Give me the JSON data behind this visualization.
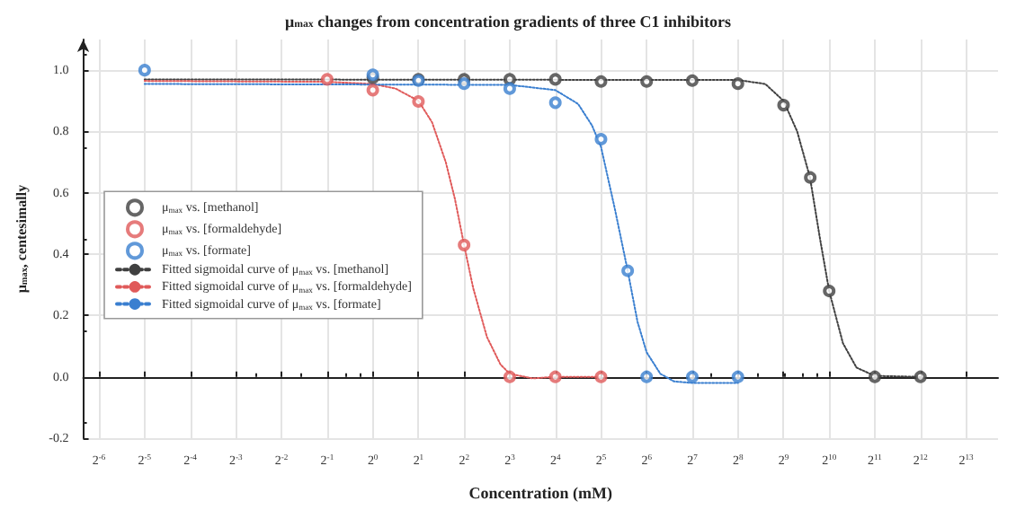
{
  "chart_data": {
    "type": "scatter",
    "title": "μ$_{max}$ changes from concentration gradients of three C1 inhibitors",
    "xlabel": "Concentration (mM)",
    "ylabel": "μ$_{max}$, centesimally",
    "log": "x",
    "grid": true,
    "legend": "left",
    "xlim": [
      0.0123,
      13300
    ],
    "ylim": [
      -0.2,
      1.1
    ],
    "xticks": [
      {
        "value": 0.015625,
        "label": "2$^{-6}$"
      },
      {
        "value": 0.03125,
        "label": "2$^{-5}$"
      },
      {
        "value": 0.0625,
        "label": "2$^{-4}$"
      },
      {
        "value": 0.125,
        "label": "2$^{-3}$"
      },
      {
        "value": 0.25,
        "label": "2$^{-2}$"
      },
      {
        "value": 0.5,
        "label": "2$^{-1}$"
      },
      {
        "value": 1,
        "label": "2$^{0}$"
      },
      {
        "value": 2,
        "label": "2$^{1}$"
      },
      {
        "value": 4,
        "label": "2$^{2}$"
      },
      {
        "value": 8,
        "label": "2$^{3}$"
      },
      {
        "value": 16,
        "label": "2$^{4}$"
      },
      {
        "value": 32,
        "label": "2$^{5}$"
      },
      {
        "value": 64,
        "label": "2$^{6}$"
      },
      {
        "value": 128,
        "label": "2$^{7}$"
      },
      {
        "value": 256,
        "label": "2$^{8}$"
      },
      {
        "value": 512,
        "label": "2$^{9}$"
      },
      {
        "value": 1024,
        "label": "2$^{10}$"
      },
      {
        "value": 2048,
        "label": "2$^{11}$"
      },
      {
        "value": 4096,
        "label": "2$^{12}$"
      },
      {
        "value": 8192,
        "label": "2$^{13}$"
      }
    ],
    "yticks": [
      -0.2,
      {
        "value": 0,
        "label": "0.0"
      },
      0.2,
      0.4,
      0.6,
      0.8,
      {
        "value": 1,
        "label": "1.0"
      }
    ],
    "series": [
      {
        "name": "μ$_{max}$ vs. [methanol]",
        "type": "scatter",
        "marker": "circle",
        "color": "#404040",
        "x": [
          1,
          2,
          4,
          8,
          16,
          32,
          64,
          128,
          256,
          512,
          768,
          1024,
          2048,
          4096
        ],
        "values": [
          0.975,
          0.97,
          0.97,
          0.97,
          0.97,
          0.963,
          0.963,
          0.966,
          0.956,
          0.886,
          0.65,
          0.28,
          0,
          0
        ]
      },
      {
        "name": "μ$_{max}$ vs. [formaldehyde]",
        "type": "scatter",
        "marker": "circle",
        "color": "#e05a5a",
        "x": [
          0.5,
          1,
          2,
          4,
          8,
          16,
          32
        ],
        "values": [
          0.97,
          0.935,
          0.898,
          0.43,
          0,
          0,
          0
        ]
      },
      {
        "name": "μ$_{max}$ vs. [formate]",
        "type": "scatter",
        "marker": "circle",
        "color": "#3a7fd0",
        "x": [
          0.03125,
          1,
          2,
          4,
          8,
          16,
          32,
          48,
          64,
          128,
          256
        ],
        "values": [
          1.0,
          0.985,
          0.966,
          0.956,
          0.94,
          0.894,
          0.775,
          0.346,
          0,
          0,
          0
        ]
      },
      {
        "name": "Fitted sigmoidal curve of μ$_{max}$ vs. [methanol]",
        "type": "line",
        "marker": "none",
        "line_style": "dotted",
        "color": "#404040",
        "x": [
          0.03125,
          256,
          388,
          512,
          630,
          765,
          891,
          1024,
          1261,
          1552,
          2048,
          4096
        ],
        "values": [
          0.97,
          0.968,
          0.955,
          0.9,
          0.8,
          0.65,
          0.45,
          0.28,
          0.11,
          0.03,
          0.003,
          0
        ]
      },
      {
        "name": "Fitted sigmoidal curve of μ$_{max}$ vs. [formaldehyde]",
        "type": "line",
        "marker": "none",
        "line_style": "dotted",
        "color": "#e05a5a",
        "x": [
          0.03125,
          0.5,
          1,
          1.414,
          2,
          2.46,
          3.03,
          3.48,
          4,
          4.59,
          5.66,
          6.96,
          8,
          11.3,
          16,
          32
        ],
        "values": [
          0.965,
          0.962,
          0.955,
          0.94,
          0.9,
          0.83,
          0.7,
          0.58,
          0.43,
          0.29,
          0.13,
          0.04,
          0.01,
          -0.005,
          0,
          0
        ]
      },
      {
        "name": "Fitted sigmoidal curve of μ$_{max}$ vs. [formate]",
        "type": "line",
        "marker": "none",
        "line_style": "dotted",
        "color": "#3a7fd0",
        "x": [
          0.03125,
          8,
          16,
          22.6,
          27.9,
          32,
          39.4,
          48,
          55.7,
          64,
          78.8,
          97,
          128,
          256
        ],
        "values": [
          0.955,
          0.952,
          0.935,
          0.89,
          0.82,
          0.75,
          0.55,
          0.346,
          0.18,
          0.08,
          0.01,
          -0.015,
          -0.02,
          -0.02
        ]
      }
    ]
  }
}
